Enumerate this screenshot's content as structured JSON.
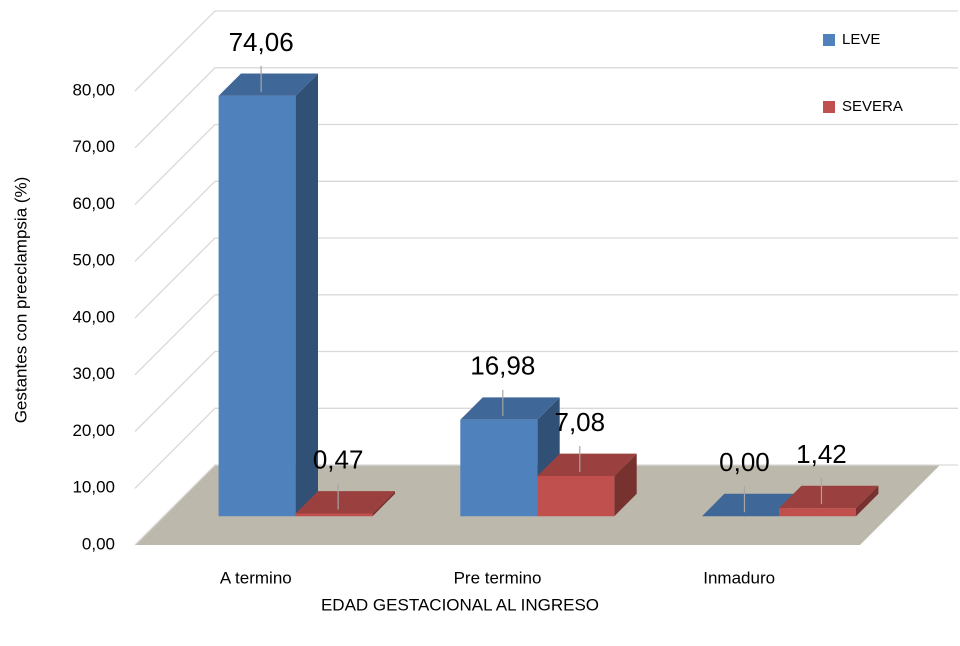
{
  "chart_data": {
    "type": "bar3d",
    "x_label": "EDAD GESTACIONAL AL INGRESO",
    "y_label": "Gestantes  con  preeclampsia (%)",
    "categories": [
      "A termino",
      "Pre termino",
      "Inmaduro"
    ],
    "series": [
      {
        "name": "LEVE",
        "color": "#4f81bd",
        "values": [
          74.06,
          16.98,
          0.0
        ],
        "value_labels": [
          "74,06",
          "16,98",
          "0,00"
        ]
      },
      {
        "name": "SEVERA",
        "color": "#c0504d",
        "values": [
          0.47,
          7.08,
          1.42
        ],
        "value_labels": [
          "0,47",
          "7,08",
          "1,42"
        ]
      }
    ],
    "ylim": [
      0,
      80
    ],
    "yticks": [
      {
        "value": 0,
        "label": "0,00"
      },
      {
        "value": 10,
        "label": "10,00"
      },
      {
        "value": 20,
        "label": "20,00"
      },
      {
        "value": 30,
        "label": "30,00"
      },
      {
        "value": 40,
        "label": "40,00"
      },
      {
        "value": 50,
        "label": "50,00"
      },
      {
        "value": 60,
        "label": "60,00"
      },
      {
        "value": 70,
        "label": "70,00"
      },
      {
        "value": 80,
        "label": "80,00"
      }
    ],
    "grid": true,
    "legend": "top-right"
  }
}
